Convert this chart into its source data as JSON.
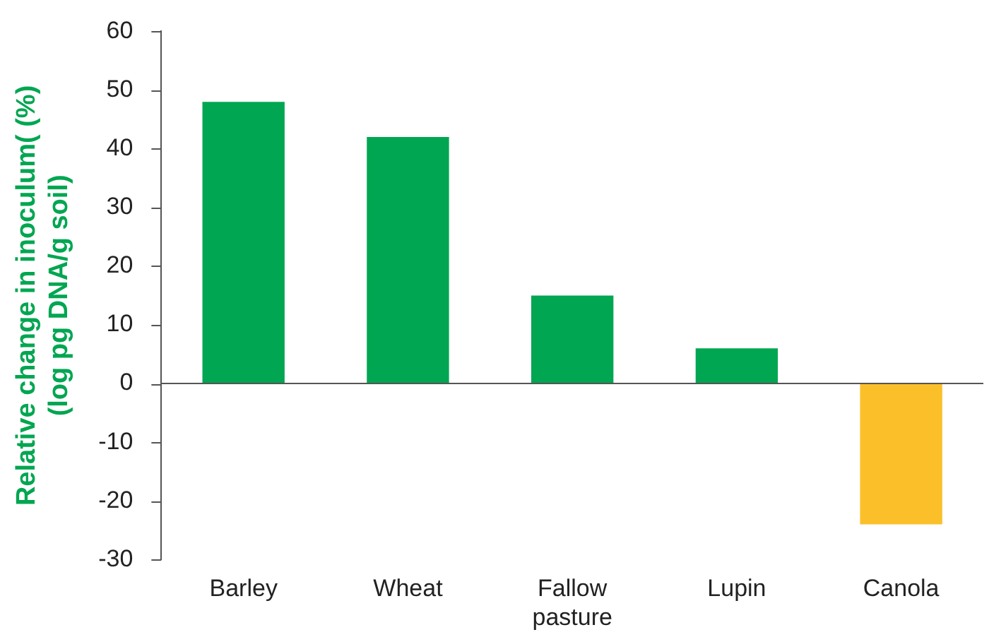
{
  "chart_data": {
    "type": "bar",
    "ylabel": "Relative change in inoculum( (%)\n(log pg DNA/g soil)",
    "categories": [
      "Barley",
      "Wheat",
      "Fallow pasture",
      "Lupin",
      "Canola"
    ],
    "values": [
      48,
      42,
      15,
      6,
      -24
    ],
    "colors": [
      "#00a651",
      "#00a651",
      "#00a651",
      "#00a651",
      "#fbbf2a"
    ],
    "ylim": [
      -30,
      60
    ],
    "yticks": [
      -30,
      -20,
      -10,
      0,
      10,
      20,
      30,
      40,
      50,
      60
    ],
    "legend": false
  }
}
